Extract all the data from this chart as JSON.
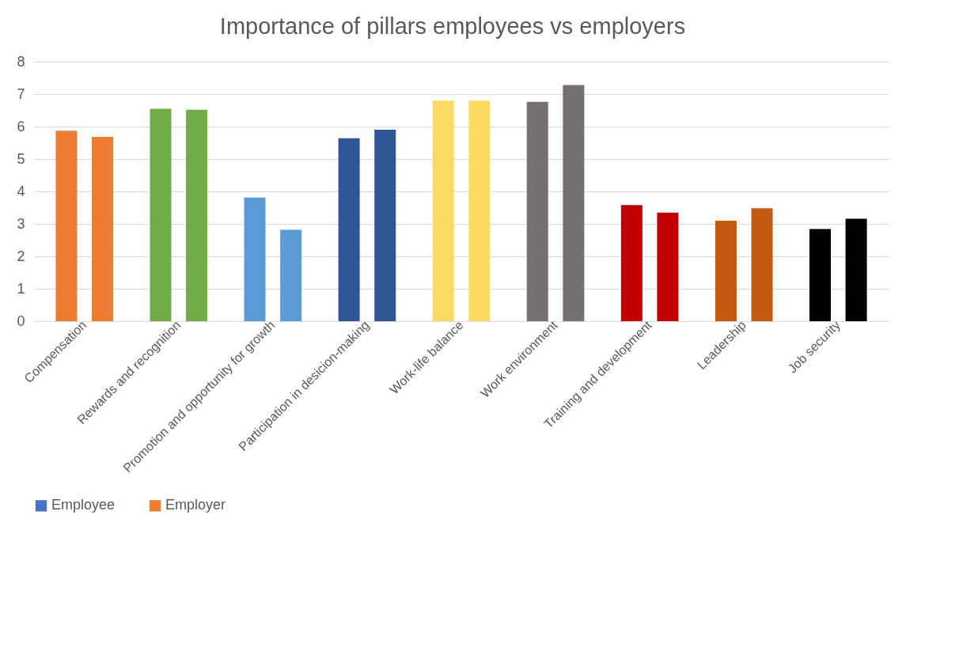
{
  "chart_data": {
    "type": "bar",
    "title": "Importance of pillars employees vs employers",
    "categories": [
      "Compensation",
      "Rewards and recognition",
      "Promotion and opportunity for growth",
      "Participation in desicion-making",
      "Work-life balance",
      "Work environment",
      "Training and development",
      "Leadership",
      "Job security"
    ],
    "series": [
      {
        "name": "Employee",
        "color": "#4472c4",
        "colors": [
          "#ed7d31",
          "#70ad47",
          "#5b9bd5",
          "#2f5597",
          "#ffd966",
          "#767171",
          "#c00000",
          "#c55a11",
          "#000000"
        ],
        "values": [
          5.87,
          6.55,
          3.81,
          5.64,
          6.8,
          6.76,
          3.58,
          3.1,
          2.84
        ]
      },
      {
        "name": "Employer",
        "color": "#ed7d31",
        "colors": [
          "#ed7d31",
          "#70ad47",
          "#5b9bd5",
          "#2f5597",
          "#ffd966",
          "#767171",
          "#c00000",
          "#c55a11",
          "#000000"
        ],
        "values": [
          5.68,
          6.52,
          2.82,
          5.9,
          6.8,
          7.28,
          3.35,
          3.48,
          3.16
        ]
      }
    ],
    "ylim": [
      0,
      8
    ],
    "yticks": [
      0,
      1,
      2,
      3,
      4,
      5,
      6,
      7,
      8
    ],
    "grid": "y",
    "legend": "bottom"
  }
}
